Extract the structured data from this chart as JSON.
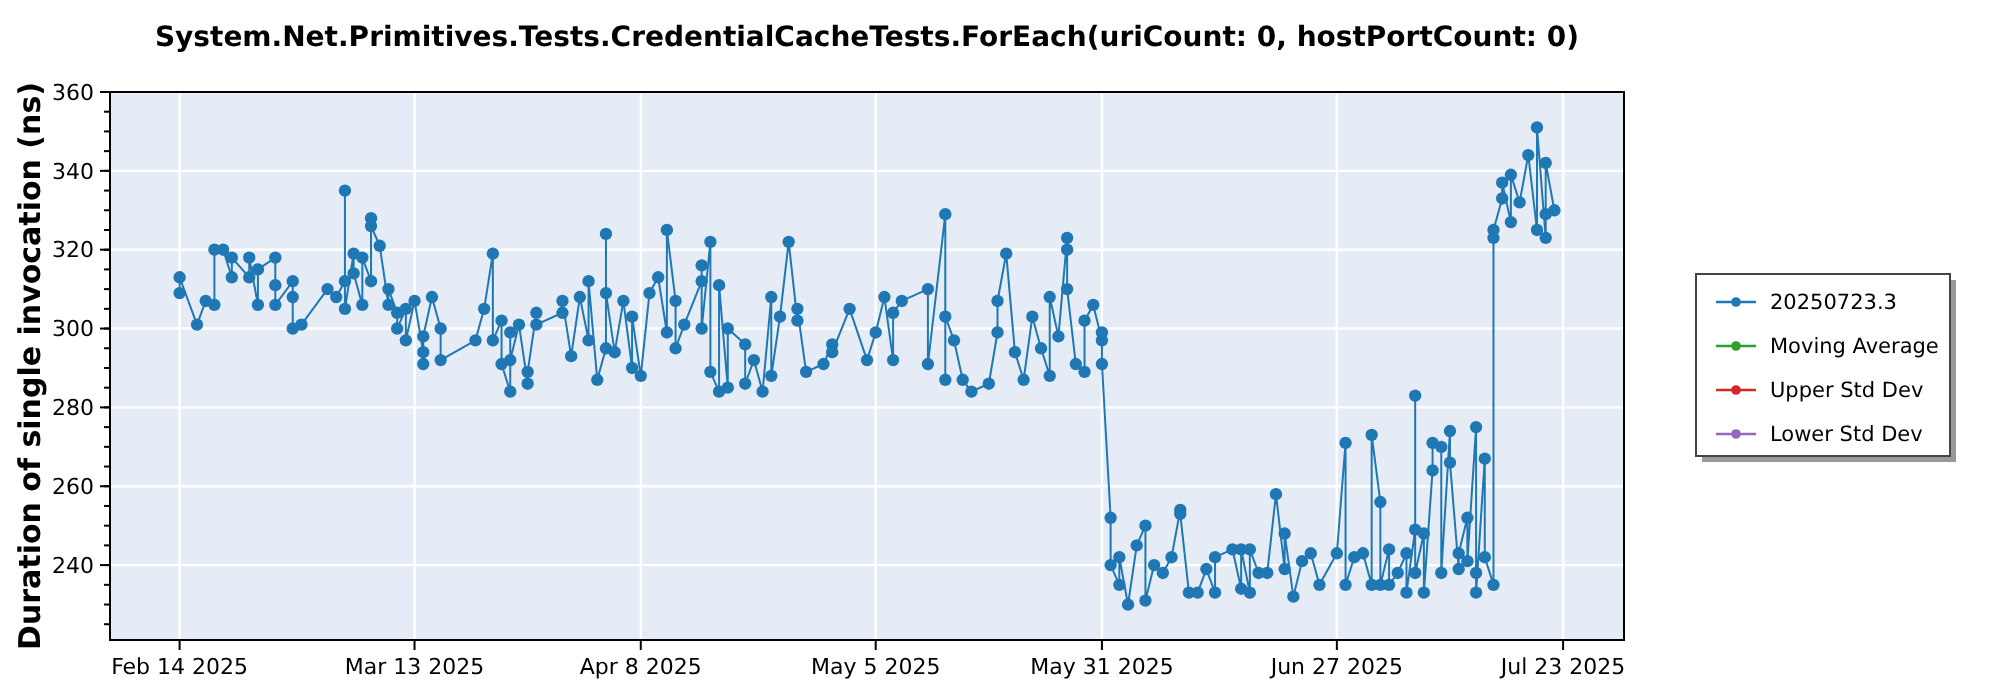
{
  "chart_data": {
    "type": "line",
    "title": "System.Net.Primitives.Tests.CredentialCacheTests.ForEach(uriCount: 0, hostPortCount: 0)",
    "ylabel": "Duration of single invocation (ns)",
    "xlim": [
      "2025-02-06",
      "2025-07-30"
    ],
    "xticks": [
      {
        "value": "2025-02-14",
        "label": "Feb 14 2025"
      },
      {
        "value": "2025-03-13",
        "label": "Mar 13 2025"
      },
      {
        "value": "2025-04-08",
        "label": "Apr 8 2025"
      },
      {
        "value": "2025-05-05",
        "label": "May 5 2025"
      },
      {
        "value": "2025-05-31",
        "label": "May 31 2025"
      },
      {
        "value": "2025-06-27",
        "label": "Jun 27 2025"
      },
      {
        "value": "2025-07-23",
        "label": "Jul 23 2025"
      }
    ],
    "ylim": [
      221,
      360
    ],
    "yticks": [
      240,
      260,
      280,
      300,
      320,
      340,
      360
    ],
    "grid": true,
    "legend": "right",
    "marker": "circle",
    "line_style": "solid",
    "series": [
      {
        "name": "20250723.3",
        "color": "#1f77b4",
        "x": [
          "2025-02-14",
          "2025-02-14",
          "2025-02-16",
          "2025-02-17",
          "2025-02-18",
          "2025-02-18",
          "2025-02-19",
          "2025-02-20",
          "2025-02-20",
          "2025-02-22",
          "2025-02-22",
          "2025-02-23",
          "2025-02-23",
          "2025-02-25",
          "2025-02-25",
          "2025-02-25",
          "2025-02-27",
          "2025-02-27",
          "2025-02-27",
          "2025-02-28",
          "2025-03-03",
          "2025-03-04",
          "2025-03-05",
          "2025-03-05",
          "2025-03-05",
          "2025-03-06",
          "2025-03-06",
          "2025-03-07",
          "2025-03-07",
          "2025-03-08",
          "2025-03-08",
          "2025-03-08",
          "2025-03-09",
          "2025-03-10",
          "2025-03-10",
          "2025-03-11",
          "2025-03-11",
          "2025-03-12",
          "2025-03-12",
          "2025-03-13",
          "2025-03-14",
          "2025-03-14",
          "2025-03-14",
          "2025-03-15",
          "2025-03-16",
          "2025-03-16",
          "2025-03-20",
          "2025-03-21",
          "2025-03-22",
          "2025-03-22",
          "2025-03-23",
          "2025-03-23",
          "2025-03-24",
          "2025-03-24",
          "2025-03-24",
          "2025-03-25",
          "2025-03-26",
          "2025-03-26",
          "2025-03-27",
          "2025-03-27",
          "2025-03-30",
          "2025-03-30",
          "2025-03-31",
          "2025-04-01",
          "2025-04-02",
          "2025-04-02",
          "2025-04-03",
          "2025-04-04",
          "2025-04-04",
          "2025-04-04",
          "2025-04-05",
          "2025-04-06",
          "2025-04-07",
          "2025-04-07",
          "2025-04-08",
          "2025-04-09",
          "2025-04-10",
          "2025-04-11",
          "2025-04-11",
          "2025-04-12",
          "2025-04-12",
          "2025-04-13",
          "2025-04-15",
          "2025-04-15",
          "2025-04-15",
          "2025-04-16",
          "2025-04-16",
          "2025-04-17",
          "2025-04-17",
          "2025-04-18",
          "2025-04-18",
          "2025-04-20",
          "2025-04-20",
          "2025-04-21",
          "2025-04-22",
          "2025-04-23",
          "2025-04-23",
          "2025-04-24",
          "2025-04-25",
          "2025-04-26",
          "2025-04-26",
          "2025-04-27",
          "2025-04-29",
          "2025-04-30",
          "2025-04-30",
          "2025-05-02",
          "2025-05-04",
          "2025-05-05",
          "2025-05-06",
          "2025-05-07",
          "2025-05-07",
          "2025-05-08",
          "2025-05-11",
          "2025-05-11",
          "2025-05-13",
          "2025-05-13",
          "2025-05-13",
          "2025-05-14",
          "2025-05-15",
          "2025-05-16",
          "2025-05-18",
          "2025-05-19",
          "2025-05-19",
          "2025-05-20",
          "2025-05-21",
          "2025-05-22",
          "2025-05-23",
          "2025-05-24",
          "2025-05-25",
          "2025-05-25",
          "2025-05-26",
          "2025-05-27",
          "2025-05-27",
          "2025-05-27",
          "2025-05-28",
          "2025-05-29",
          "2025-05-29",
          "2025-05-30",
          "2025-05-31",
          "2025-05-31",
          "2025-05-31",
          "2025-06-01",
          "2025-06-01",
          "2025-06-02",
          "2025-06-02",
          "2025-06-03",
          "2025-06-04",
          "2025-06-05",
          "2025-06-05",
          "2025-06-06",
          "2025-06-07",
          "2025-06-08",
          "2025-06-09",
          "2025-06-09",
          "2025-06-10",
          "2025-06-11",
          "2025-06-12",
          "2025-06-13",
          "2025-06-13",
          "2025-06-15",
          "2025-06-16",
          "2025-06-16",
          "2025-06-17",
          "2025-06-17",
          "2025-06-18",
          "2025-06-19",
          "2025-06-20",
          "2025-06-21",
          "2025-06-21",
          "2025-06-22",
          "2025-06-23",
          "2025-06-24",
          "2025-06-25",
          "2025-06-27",
          "2025-06-28",
          "2025-06-28",
          "2025-06-29",
          "2025-06-30",
          "2025-07-01",
          "2025-07-01",
          "2025-07-02",
          "2025-07-02",
          "2025-07-03",
          "2025-07-03",
          "2025-07-04",
          "2025-07-05",
          "2025-07-05",
          "2025-07-06",
          "2025-07-06",
          "2025-07-06",
          "2025-07-07",
          "2025-07-07",
          "2025-07-08",
          "2025-07-08",
          "2025-07-09",
          "2025-07-09",
          "2025-07-10",
          "2025-07-10",
          "2025-07-11",
          "2025-07-11",
          "2025-07-12",
          "2025-07-12",
          "2025-07-13",
          "2025-07-13",
          "2025-07-13",
          "2025-07-14",
          "2025-07-14",
          "2025-07-15",
          "2025-07-15",
          "2025-07-15",
          "2025-07-16",
          "2025-07-16",
          "2025-07-17",
          "2025-07-17",
          "2025-07-18",
          "2025-07-19",
          "2025-07-20",
          "2025-07-20",
          "2025-07-21",
          "2025-07-21",
          "2025-07-21",
          "2025-07-22"
        ],
        "values": [
          309,
          313,
          301,
          307,
          306,
          320,
          320,
          313,
          318,
          313,
          318,
          306,
          315,
          318,
          311,
          306,
          312,
          308,
          300,
          301,
          310,
          308,
          312,
          335,
          305,
          319,
          314,
          306,
          318,
          312,
          328,
          326,
          321,
          306,
          310,
          304,
          300,
          305,
          297,
          307,
          294,
          291,
          298,
          308,
          300,
          292,
          297,
          305,
          319,
          297,
          302,
          291,
          284,
          299,
          292,
          301,
          286,
          289,
          304,
          301,
          304,
          307,
          293,
          308,
          297,
          312,
          287,
          295,
          324,
          309,
          294,
          307,
          290,
          303,
          288,
          309,
          313,
          299,
          325,
          307,
          295,
          301,
          312,
          316,
          300,
          322,
          289,
          284,
          311,
          285,
          300,
          296,
          286,
          292,
          284,
          308,
          288,
          303,
          322,
          302,
          305,
          289,
          291,
          296,
          294,
          305,
          292,
          299,
          308,
          292,
          304,
          307,
          310,
          291,
          329,
          287,
          303,
          297,
          287,
          284,
          286,
          299,
          307,
          319,
          294,
          287,
          303,
          295,
          288,
          308,
          298,
          323,
          320,
          310,
          291,
          289,
          302,
          306,
          297,
          299,
          291,
          252,
          240,
          235,
          242,
          230,
          245,
          250,
          231,
          240,
          238,
          242,
          254,
          253,
          233,
          233,
          239,
          233,
          242,
          244,
          234,
          244,
          233,
          244,
          238,
          238,
          258,
          239,
          248,
          232,
          241,
          243,
          235,
          243,
          271,
          235,
          242,
          243,
          235,
          273,
          256,
          235,
          244,
          235,
          238,
          243,
          233,
          249,
          283,
          238,
          248,
          233,
          264,
          271,
          270,
          238,
          274,
          266,
          239,
          243,
          252,
          241,
          275,
          238,
          233,
          267,
          242,
          235,
          323,
          325,
          333,
          337,
          327,
          339,
          332,
          344,
          325,
          351,
          323,
          329,
          342,
          330
        ]
      },
      {
        "name": "Moving Average",
        "color": "#2ca02c"
      },
      {
        "name": "Upper Std Dev",
        "color": "#d62728"
      },
      {
        "name": "Lower Std Dev",
        "color": "#9467bd"
      }
    ]
  }
}
